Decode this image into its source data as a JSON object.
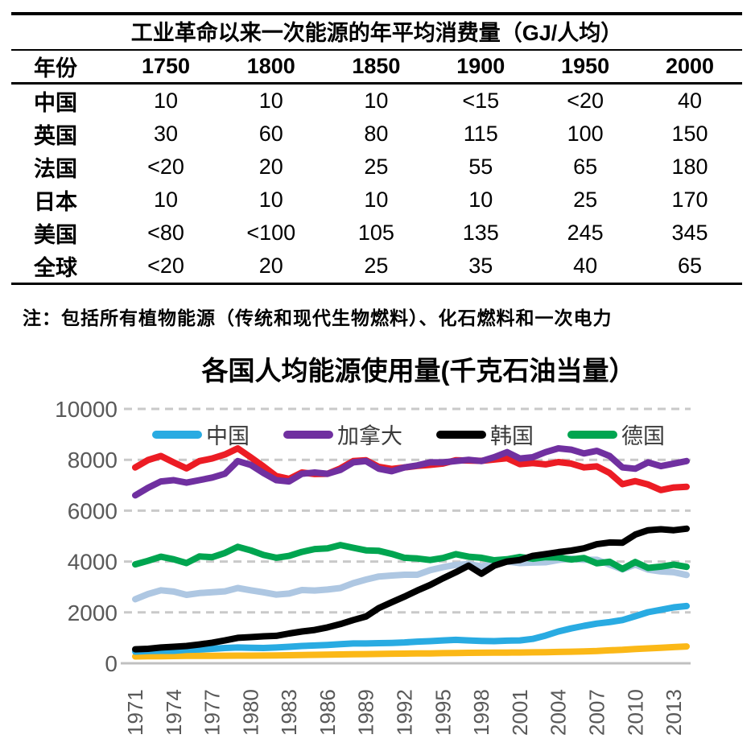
{
  "table": {
    "title": "工业革命以来一次能源的年平均消费量（GJ/人均）",
    "header": [
      "年份",
      "1750",
      "1800",
      "1850",
      "1900",
      "1950",
      "2000"
    ],
    "rows": [
      {
        "label": "中国",
        "values": [
          "10",
          "10",
          "10",
          "<15",
          "<20",
          "40"
        ]
      },
      {
        "label": "英国",
        "values": [
          "30",
          "60",
          "80",
          "115",
          "100",
          "150"
        ]
      },
      {
        "label": "法国",
        "values": [
          "<20",
          "20",
          "25",
          "55",
          "65",
          "180"
        ]
      },
      {
        "label": "日本",
        "values": [
          "10",
          "10",
          "10",
          "10",
          "25",
          "170"
        ]
      },
      {
        "label": "美国",
        "values": [
          "<80",
          "<100",
          "105",
          "135",
          "245",
          "345"
        ]
      },
      {
        "label": "全球",
        "values": [
          "<20",
          "20",
          "25",
          "35",
          "40",
          "65"
        ]
      }
    ]
  },
  "note": "注：包括所有植物能源（传统和现代生物燃料）、化石燃料和一次电力",
  "chart_data": {
    "type": "line",
    "title": "各国人均能源使用量(千克石油当量）",
    "xlabel": "",
    "ylabel": "",
    "ylim": [
      0,
      10000
    ],
    "yticks": [
      0,
      2000,
      4000,
      6000,
      8000,
      10000
    ],
    "x_start": 1971,
    "x_end": 2014,
    "xtick_labels": [
      "1971",
      "1974",
      "1977",
      "1980",
      "1983",
      "1986",
      "1989",
      "1992",
      "1995",
      "1998",
      "2001",
      "2004",
      "2007",
      "2010",
      "2013"
    ],
    "grid": "horizontal-dashed",
    "legend_position": "top-inside",
    "legend_keys": [
      "china",
      "canada",
      "korea",
      "germany"
    ],
    "grid_color": "#C9C9C9",
    "axis_color": "#C0C0C0",
    "tick_text_color": "#595959",
    "series": [
      {
        "key": "red-unlabeled",
        "label": "",
        "color": "#EC1C24",
        "in_legend": false,
        "values": [
          7700,
          7990,
          8150,
          7900,
          7660,
          7950,
          8050,
          8210,
          8450,
          8100,
          7740,
          7360,
          7250,
          7500,
          7440,
          7450,
          7660,
          7950,
          7980,
          7720,
          7640,
          7700,
          7760,
          7800,
          7850,
          7980,
          7970,
          7960,
          8010,
          8060,
          7830,
          7870,
          7820,
          7910,
          7850,
          7700,
          7740,
          7480,
          7040,
          7160,
          7030,
          6810,
          6910,
          6940
        ]
      },
      {
        "key": "canada",
        "label": "加拿大",
        "color": "#7030A0",
        "in_legend": true,
        "values": [
          6600,
          6900,
          7150,
          7200,
          7100,
          7200,
          7300,
          7450,
          7950,
          7800,
          7480,
          7200,
          7150,
          7450,
          7500,
          7450,
          7600,
          7900,
          7950,
          7650,
          7550,
          7700,
          7780,
          7900,
          7900,
          7950,
          8000,
          7950,
          8100,
          8300,
          8050,
          8100,
          8300,
          8450,
          8400,
          8250,
          8350,
          8150,
          7700,
          7650,
          7900,
          7750,
          7850,
          7950
        ]
      },
      {
        "key": "lightblue-unlabeled",
        "label": "",
        "color": "#AEC7E2",
        "in_legend": false,
        "values": [
          2520,
          2720,
          2870,
          2820,
          2690,
          2760,
          2790,
          2830,
          2960,
          2870,
          2790,
          2700,
          2740,
          2880,
          2860,
          2900,
          2960,
          3150,
          3290,
          3410,
          3450,
          3480,
          3480,
          3660,
          3780,
          3870,
          3900,
          3810,
          3900,
          4000,
          3940,
          3960,
          3970,
          4060,
          4120,
          4070,
          4070,
          3880,
          3690,
          3880,
          3680,
          3610,
          3580,
          3470
        ]
      },
      {
        "key": "germany",
        "label": "德国",
        "color": "#00A550",
        "in_legend": true,
        "values": [
          3890,
          4030,
          4190,
          4090,
          3940,
          4200,
          4170,
          4340,
          4580,
          4440,
          4260,
          4150,
          4220,
          4380,
          4490,
          4520,
          4650,
          4540,
          4440,
          4420,
          4300,
          4150,
          4120,
          4060,
          4140,
          4290,
          4190,
          4150,
          4050,
          4090,
          4180,
          4110,
          4170,
          4160,
          4080,
          4140,
          3930,
          3990,
          3710,
          3980,
          3750,
          3800,
          3880,
          3790
        ]
      },
      {
        "key": "yellow-unlabeled",
        "label": "",
        "color": "#FBB817",
        "in_legend": false,
        "values": [
          270,
          275,
          280,
          285,
          290,
          292,
          295,
          298,
          300,
          302,
          305,
          310,
          318,
          325,
          332,
          340,
          348,
          355,
          360,
          368,
          375,
          380,
          385,
          390,
          398,
          405,
          410,
          415,
          418,
          420,
          425,
          430,
          438,
          445,
          455,
          465,
          480,
          510,
          530,
          560,
          585,
          610,
          635,
          660
        ]
      },
      {
        "key": "china",
        "label": "中国",
        "color": "#29ABE2",
        "in_legend": true,
        "values": [
          460,
          480,
          490,
          490,
          530,
          540,
          570,
          600,
          620,
          610,
          600,
          620,
          650,
          680,
          700,
          720,
          750,
          780,
          780,
          790,
          800,
          820,
          850,
          870,
          900,
          920,
          900,
          880,
          870,
          890,
          900,
          960,
          1090,
          1250,
          1370,
          1470,
          1560,
          1620,
          1700,
          1850,
          2010,
          2100,
          2200,
          2250
        ]
      },
      {
        "key": "korea",
        "label": "韩国",
        "color": "#000000",
        "in_legend": true,
        "values": [
          550,
          570,
          620,
          650,
          680,
          740,
          810,
          900,
          1000,
          1030,
          1060,
          1080,
          1170,
          1250,
          1310,
          1410,
          1540,
          1700,
          1840,
          2170,
          2400,
          2620,
          2860,
          3080,
          3340,
          3580,
          3840,
          3520,
          3840,
          4000,
          4060,
          4220,
          4290,
          4370,
          4430,
          4520,
          4680,
          4750,
          4740,
          5060,
          5230,
          5270,
          5230,
          5290
        ]
      }
    ]
  }
}
